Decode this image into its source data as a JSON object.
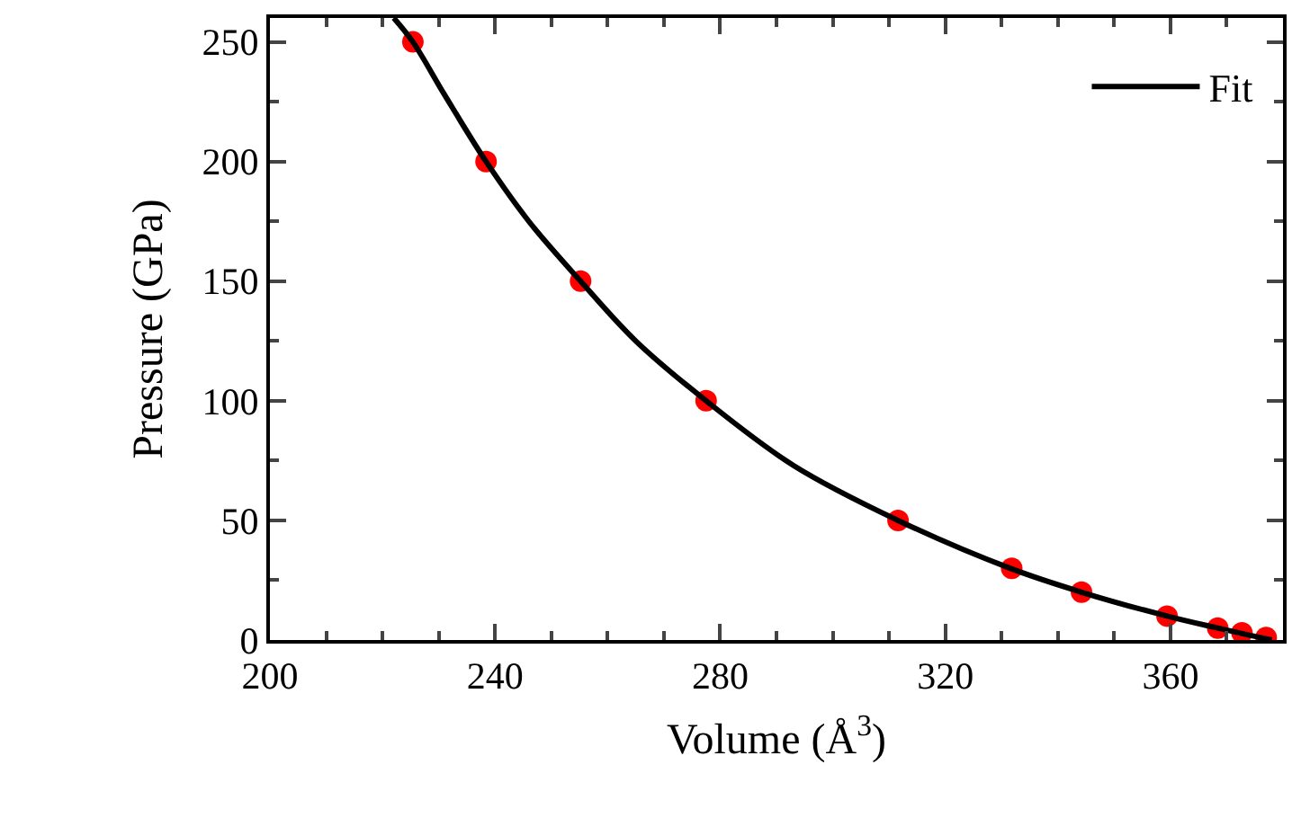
{
  "chart_data": {
    "type": "scatter",
    "xlabel": "Volume (Å$^{3}$)",
    "ylabel": "Pressure (GPa)",
    "x": [
      225.4,
      238.4,
      255.2,
      277.5,
      311.6,
      331.8,
      344.2,
      359.4,
      368.4,
      372.7,
      377.0
    ],
    "series": [
      {
        "color": "#ff0000",
        "values": [
          250,
          200,
          150,
          100,
          50,
          30,
          20,
          10,
          5,
          3,
          1
        ],
        "marker": "circle"
      },
      {
        "name": "Fit",
        "type": "line",
        "color": "#000000",
        "line_style": "solid",
        "marker": "none",
        "x": [
          222,
          225.4,
          231,
          238.4,
          246,
          255.2,
          265,
          277.5,
          293,
          311.6,
          331.5,
          344.2,
          359.4,
          368.4,
          374,
          378
        ],
        "values": [
          260,
          250,
          228,
          200,
          175,
          150,
          125,
          100,
          73,
          50,
          30,
          20,
          10,
          5,
          2,
          0
        ]
      }
    ],
    "xlim": [
      200,
      380
    ],
    "ylim": [
      0,
      260
    ],
    "xticks": [
      200,
      {
        "value": 210,
        "label": null
      },
      {
        "value": 220,
        "label": null
      },
      {
        "value": 230,
        "label": null
      },
      240,
      {
        "value": 250,
        "label": null
      },
      {
        "value": 260,
        "label": null
      },
      {
        "value": 270,
        "label": null
      },
      280,
      {
        "value": 290,
        "label": null
      },
      {
        "value": 300,
        "label": null
      },
      {
        "value": 310,
        "label": null
      },
      320,
      {
        "value": 330,
        "label": null
      },
      {
        "value": 340,
        "label": null
      },
      {
        "value": 350,
        "label": null
      },
      360,
      {
        "value": 370,
        "label": null
      }
    ],
    "yticks": [
      0,
      {
        "value": 25,
        "label": null
      },
      50,
      {
        "value": 75,
        "label": null
      },
      100,
      {
        "value": 125,
        "label": null
      },
      150,
      {
        "value": 175,
        "label": null
      },
      200,
      {
        "value": 225,
        "label": null
      },
      250
    ],
    "legend": "top right"
  }
}
